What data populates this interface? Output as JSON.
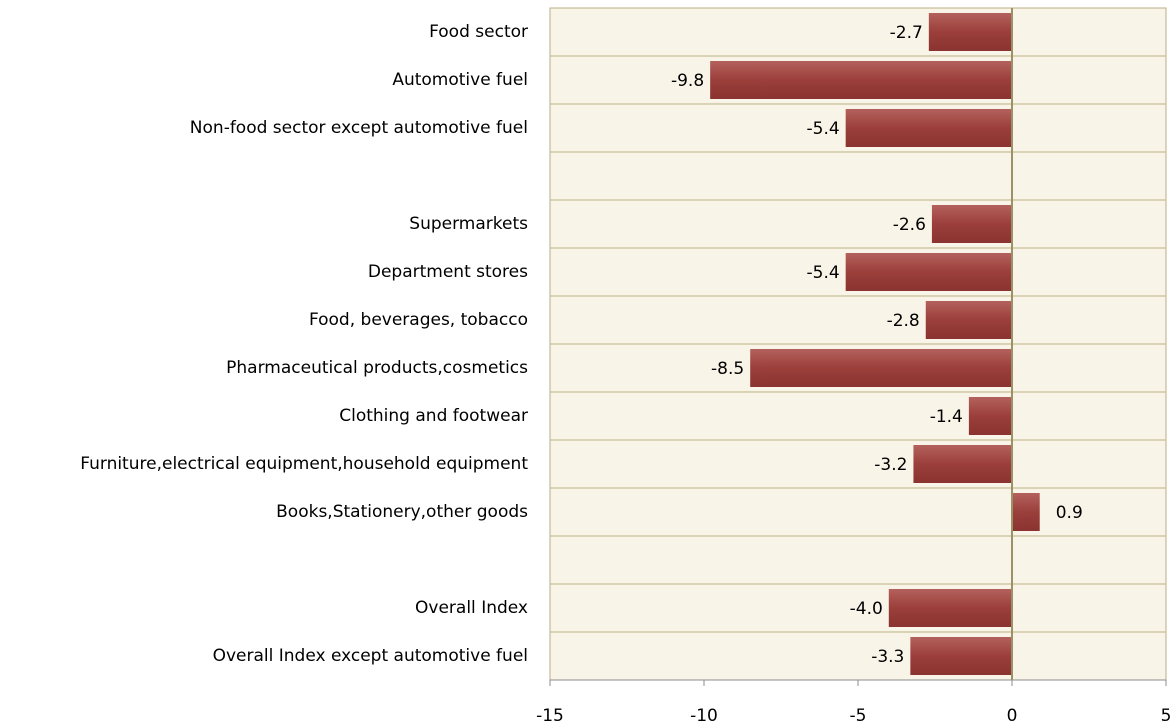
{
  "chart_data": {
    "type": "bar",
    "orientation": "horizontal",
    "categories": [
      "Food sector",
      "Automotive fuel",
      "Non-food sector except automotive fuel",
      null,
      "Supermarkets",
      "Department stores",
      "Food, beverages, tobacco",
      "Pharmaceutical products,cosmetics",
      "Clothing and footwear",
      "Furniture,electrical equipment,household equipment",
      "Books,Stationery,other goods",
      null,
      "Overall Index",
      "Overall Index except automotive fuel"
    ],
    "values": [
      -2.7,
      -9.8,
      -5.4,
      null,
      -2.6,
      -5.4,
      -2.8,
      -8.5,
      -1.4,
      -3.2,
      0.9,
      null,
      -4.0,
      -3.3
    ],
    "value_labels": [
      "-2.7",
      "-9.8",
      "-5.4",
      null,
      "-2.6",
      "-5.4",
      "-2.8",
      "-8.5",
      "-1.4",
      "-3.2",
      "0.9",
      null,
      "-4.0",
      "-3.3"
    ],
    "color": "#9b3f3b",
    "xlim": [
      -15,
      5
    ],
    "xticks": [
      -15,
      -10,
      -5,
      0,
      5
    ]
  }
}
